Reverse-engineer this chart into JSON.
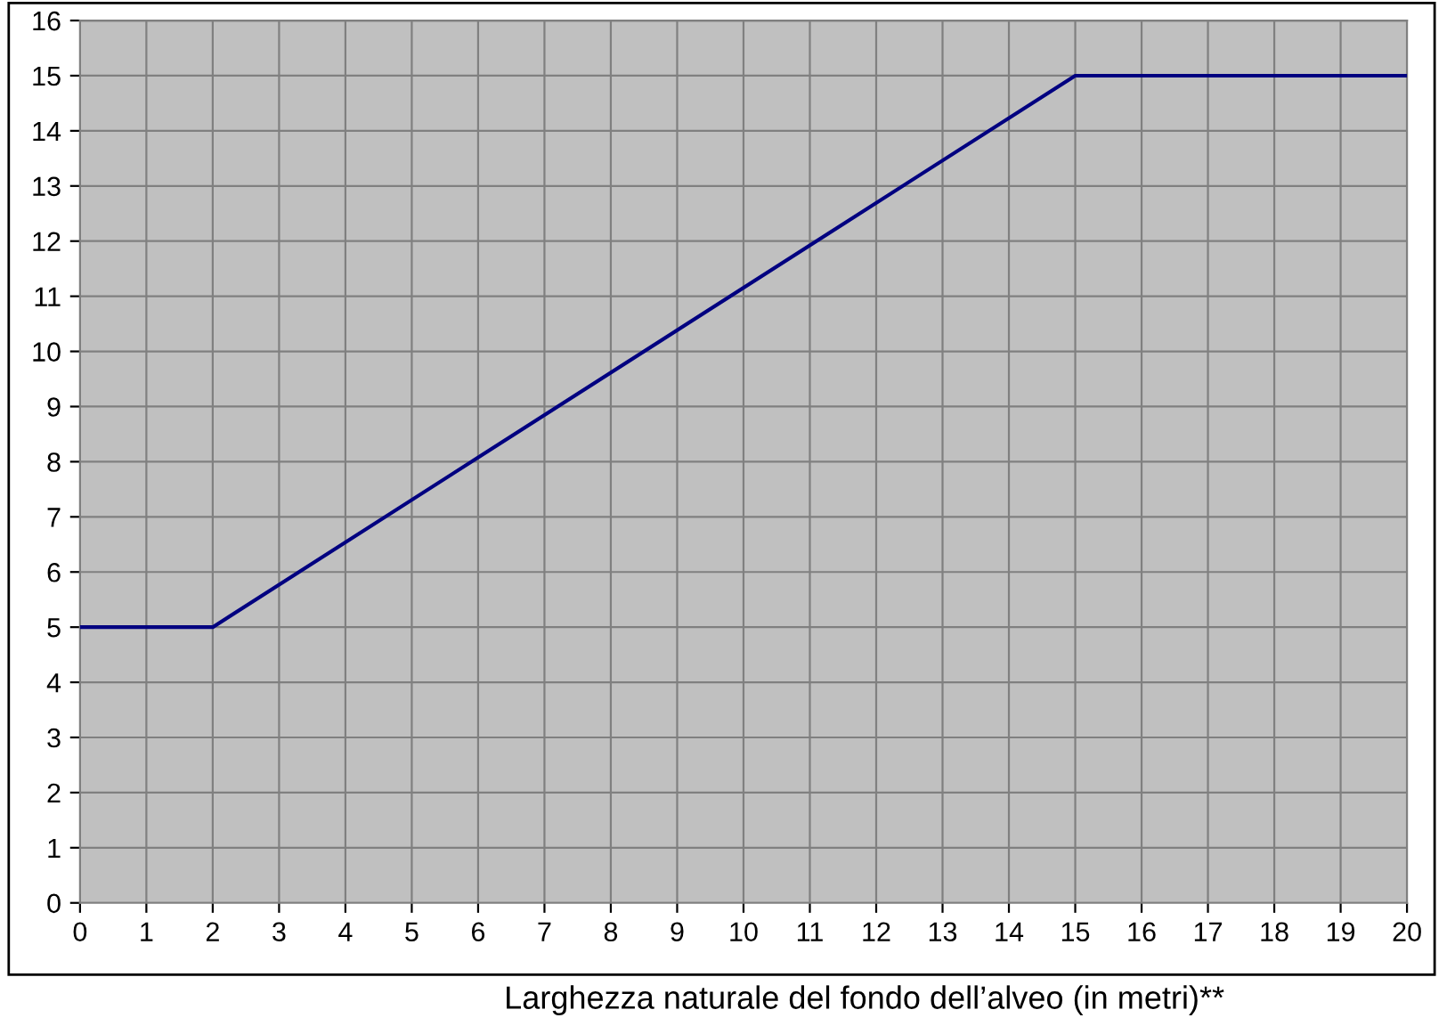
{
  "chart_data": {
    "type": "line",
    "xlabel": "Larghezza naturale del fondo dell’alveo (in metri)**",
    "x": [
      0,
      2,
      15,
      20
    ],
    "series": [
      {
        "color": "#000080",
        "values": [
          5,
          5,
          15,
          15
        ]
      }
    ],
    "xlim": [
      0,
      20
    ],
    "xticks": [
      0,
      1,
      2,
      3,
      4,
      5,
      6,
      7,
      8,
      9,
      10,
      11,
      12,
      13,
      14,
      15,
      16,
      17,
      18,
      19,
      20
    ],
    "ylim": [
      0,
      16
    ],
    "yticks": [
      0,
      1,
      2,
      3,
      4,
      5,
      6,
      7,
      8,
      9,
      10,
      11,
      12,
      13,
      14,
      15,
      16
    ],
    "grid": true,
    "marker": "none",
    "line_style": "solid"
  }
}
